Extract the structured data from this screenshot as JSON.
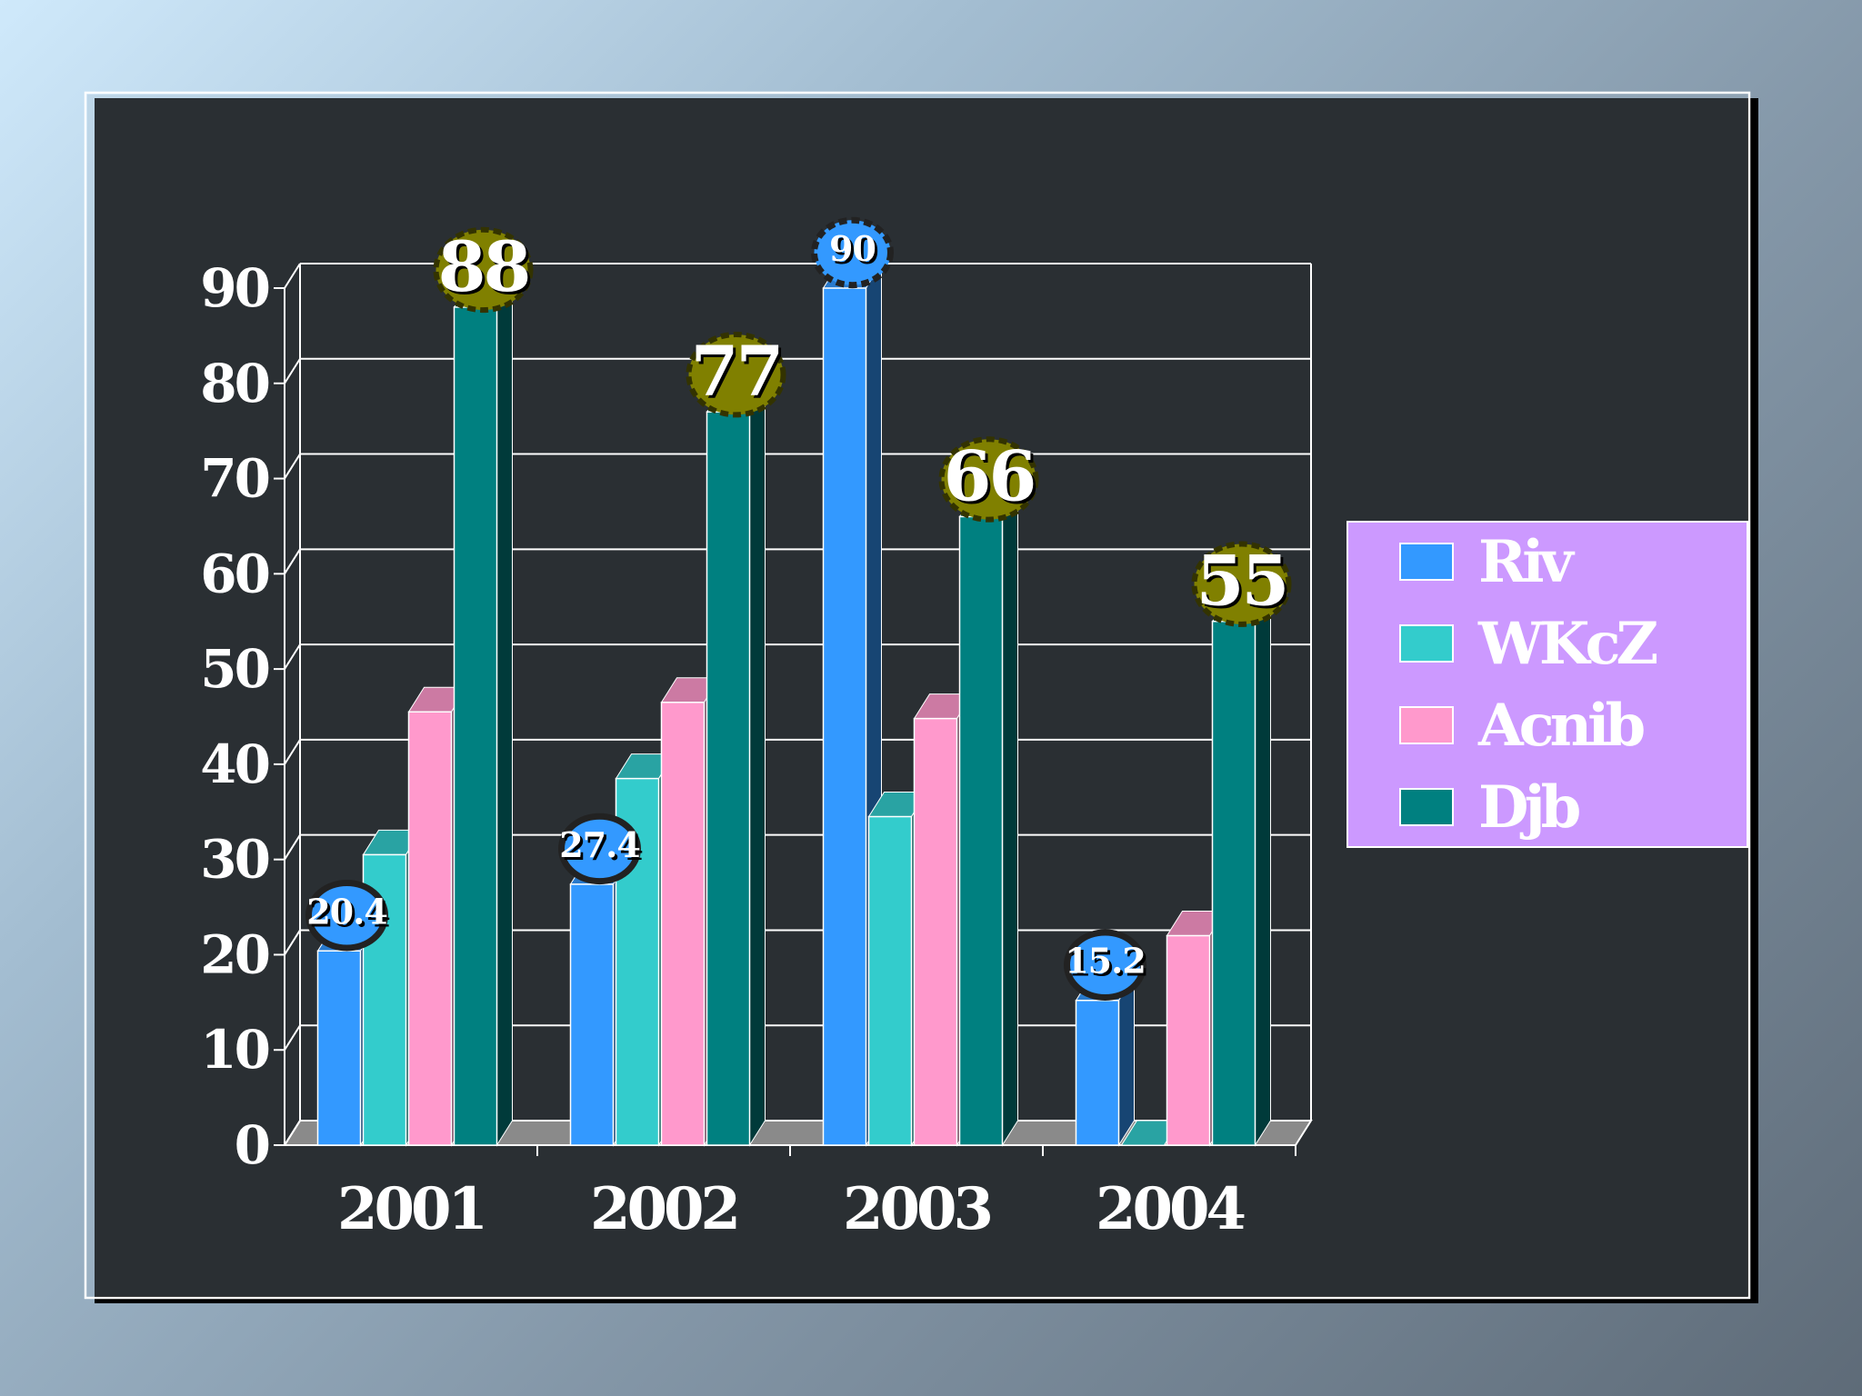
{
  "colors": {
    "background_light": "#cfe9fb",
    "background_dark": "#5e6b78",
    "legend_bg": "#cc99ff",
    "label_badge_dark": "#808000"
  },
  "chart_data": {
    "type": "bar",
    "title": "",
    "xlabel": "",
    "ylabel": "",
    "categories": [
      "2001",
      "2002",
      "2003",
      "2004"
    ],
    "ylim": [
      0,
      90
    ],
    "yticks": [
      0,
      10,
      20,
      30,
      40,
      50,
      60,
      70,
      80,
      90
    ],
    "grid": true,
    "legend_position": "right",
    "series": [
      {
        "name": "Riv",
        "color": "#3399ff",
        "values": [
          20.4,
          27.4,
          90,
          15.2
        ]
      },
      {
        "name": "WKcZ",
        "color": "#33cccc",
        "values": [
          30.5,
          38.5,
          34.5,
          0
        ]
      },
      {
        "name": "Acnib",
        "color": "#ff99cc",
        "values": [
          45.5,
          46.5,
          44.8,
          22
        ]
      },
      {
        "name": "Djb",
        "color": "#008080",
        "values": [
          88,
          77,
          66,
          55
        ]
      }
    ],
    "data_labels": [
      {
        "series": 0,
        "category": 0,
        "text": "20.4"
      },
      {
        "series": 0,
        "category": 1,
        "text": "27.4"
      },
      {
        "series": 0,
        "category": 2,
        "text": "90"
      },
      {
        "series": 0,
        "category": 3,
        "text": "15.2"
      },
      {
        "series": 3,
        "category": 0,
        "text": "88"
      },
      {
        "series": 3,
        "category": 1,
        "text": "77"
      },
      {
        "series": 3,
        "category": 2,
        "text": "66"
      },
      {
        "series": 3,
        "category": 3,
        "text": "55"
      }
    ]
  }
}
